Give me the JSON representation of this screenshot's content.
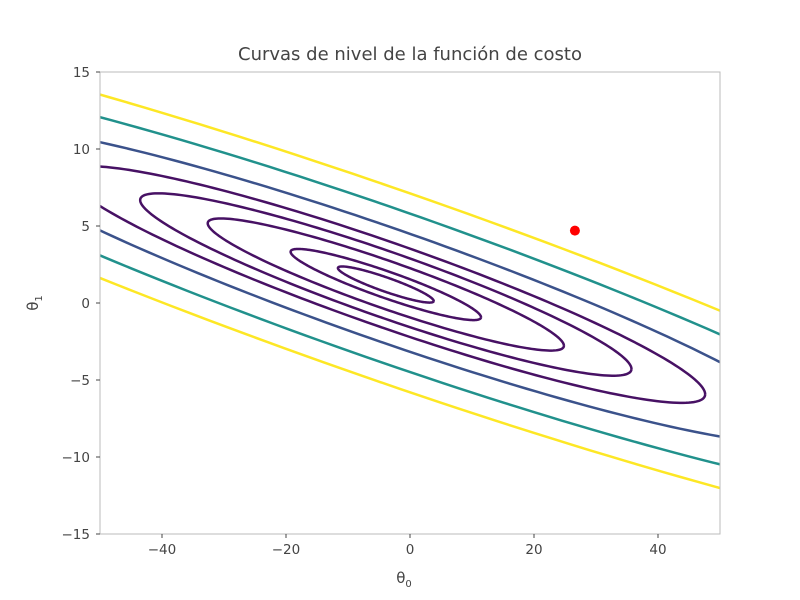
{
  "chart_data": {
    "type": "contour",
    "title": "Curvas de nivel de la función de costo",
    "xlabel": "θ",
    "xlabel_sub": "0",
    "ylabel": "θ",
    "ylabel_sub": "1",
    "xlim": [
      -50,
      50
    ],
    "ylim": [
      -15,
      15
    ],
    "xticks": [
      -40,
      -20,
      0,
      20,
      40
    ],
    "yticks": [
      -15,
      -10,
      -5,
      0,
      5,
      10,
      15
    ],
    "tick_label_format": "unicode-minus",
    "grid": false,
    "center": {
      "x": -3.9,
      "y": 1.2
    },
    "contours": [
      {
        "a": 7.8,
        "b": 0.48,
        "color": "#471164"
      },
      {
        "a": 15.5,
        "b": 0.9,
        "color": "#471164"
      },
      {
        "a": 29,
        "b": 1.6,
        "color": "#471164"
      },
      {
        "a": 40,
        "b": 2.22,
        "color": "#471164"
      },
      {
        "a": 52,
        "b": 2.85,
        "color": "#471164"
      },
      {
        "a": 70,
        "b": 3.8,
        "color": "#3b528b"
      },
      {
        "a": 95,
        "b": 5.1,
        "color": "#21918c"
      },
      {
        "a": 120,
        "b": 6.4,
        "color": "#fde725"
      }
    ],
    "contour_angle_deg": -7.9,
    "point": {
      "x": 26.6,
      "y": 4.7,
      "color": "#ff0000"
    },
    "axis_color": "#bbbbbb",
    "tick_color": "#444444"
  }
}
